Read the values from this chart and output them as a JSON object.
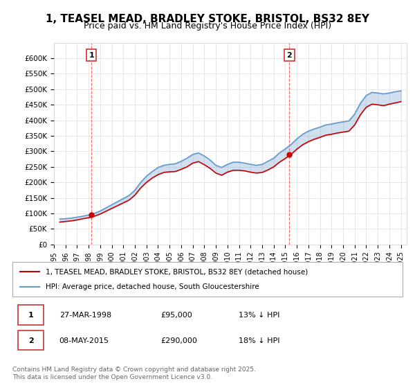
{
  "title": "1, TEASEL MEAD, BRADLEY STOKE, BRISTOL, BS32 8EY",
  "subtitle": "Price paid vs. HM Land Registry's House Price Index (HPI)",
  "title_fontsize": 11,
  "subtitle_fontsize": 9,
  "ylabel_ticks": [
    "£0",
    "£50K",
    "£100K",
    "£150K",
    "£200K",
    "£250K",
    "£300K",
    "£350K",
    "£400K",
    "£450K",
    "£500K",
    "£550K",
    "£600K"
  ],
  "ytick_values": [
    0,
    50000,
    100000,
    150000,
    200000,
    250000,
    300000,
    350000,
    400000,
    450000,
    500000,
    550000,
    600000
  ],
  "ylim": [
    0,
    650000
  ],
  "xlim_start": 1995.0,
  "xlim_end": 2025.5,
  "purchase1_x": 1998.24,
  "purchase1_y": 95000,
  "purchase1_label": "1",
  "purchase2_x": 2015.36,
  "purchase2_y": 290000,
  "purchase2_label": "2",
  "legend_line1": "1, TEASEL MEAD, BRADLEY STOKE, BRISTOL, BS32 8EY (detached house)",
  "legend_line2": "HPI: Average price, detached house, South Gloucestershire",
  "table_row1": [
    "1",
    "27-MAR-1998",
    "£95,000",
    "13% ↓ HPI"
  ],
  "table_row2": [
    "2",
    "08-MAY-2015",
    "£290,000",
    "18% ↓ HPI"
  ],
  "footer": "Contains HM Land Registry data © Crown copyright and database right 2025.\nThis data is licensed under the Open Government Licence v3.0.",
  "line_color_property": "#cc0000",
  "line_color_hpi": "#6699cc",
  "background_color": "#ffffff",
  "grid_color": "#dddddd",
  "dashed_line_color": "#ff6666"
}
